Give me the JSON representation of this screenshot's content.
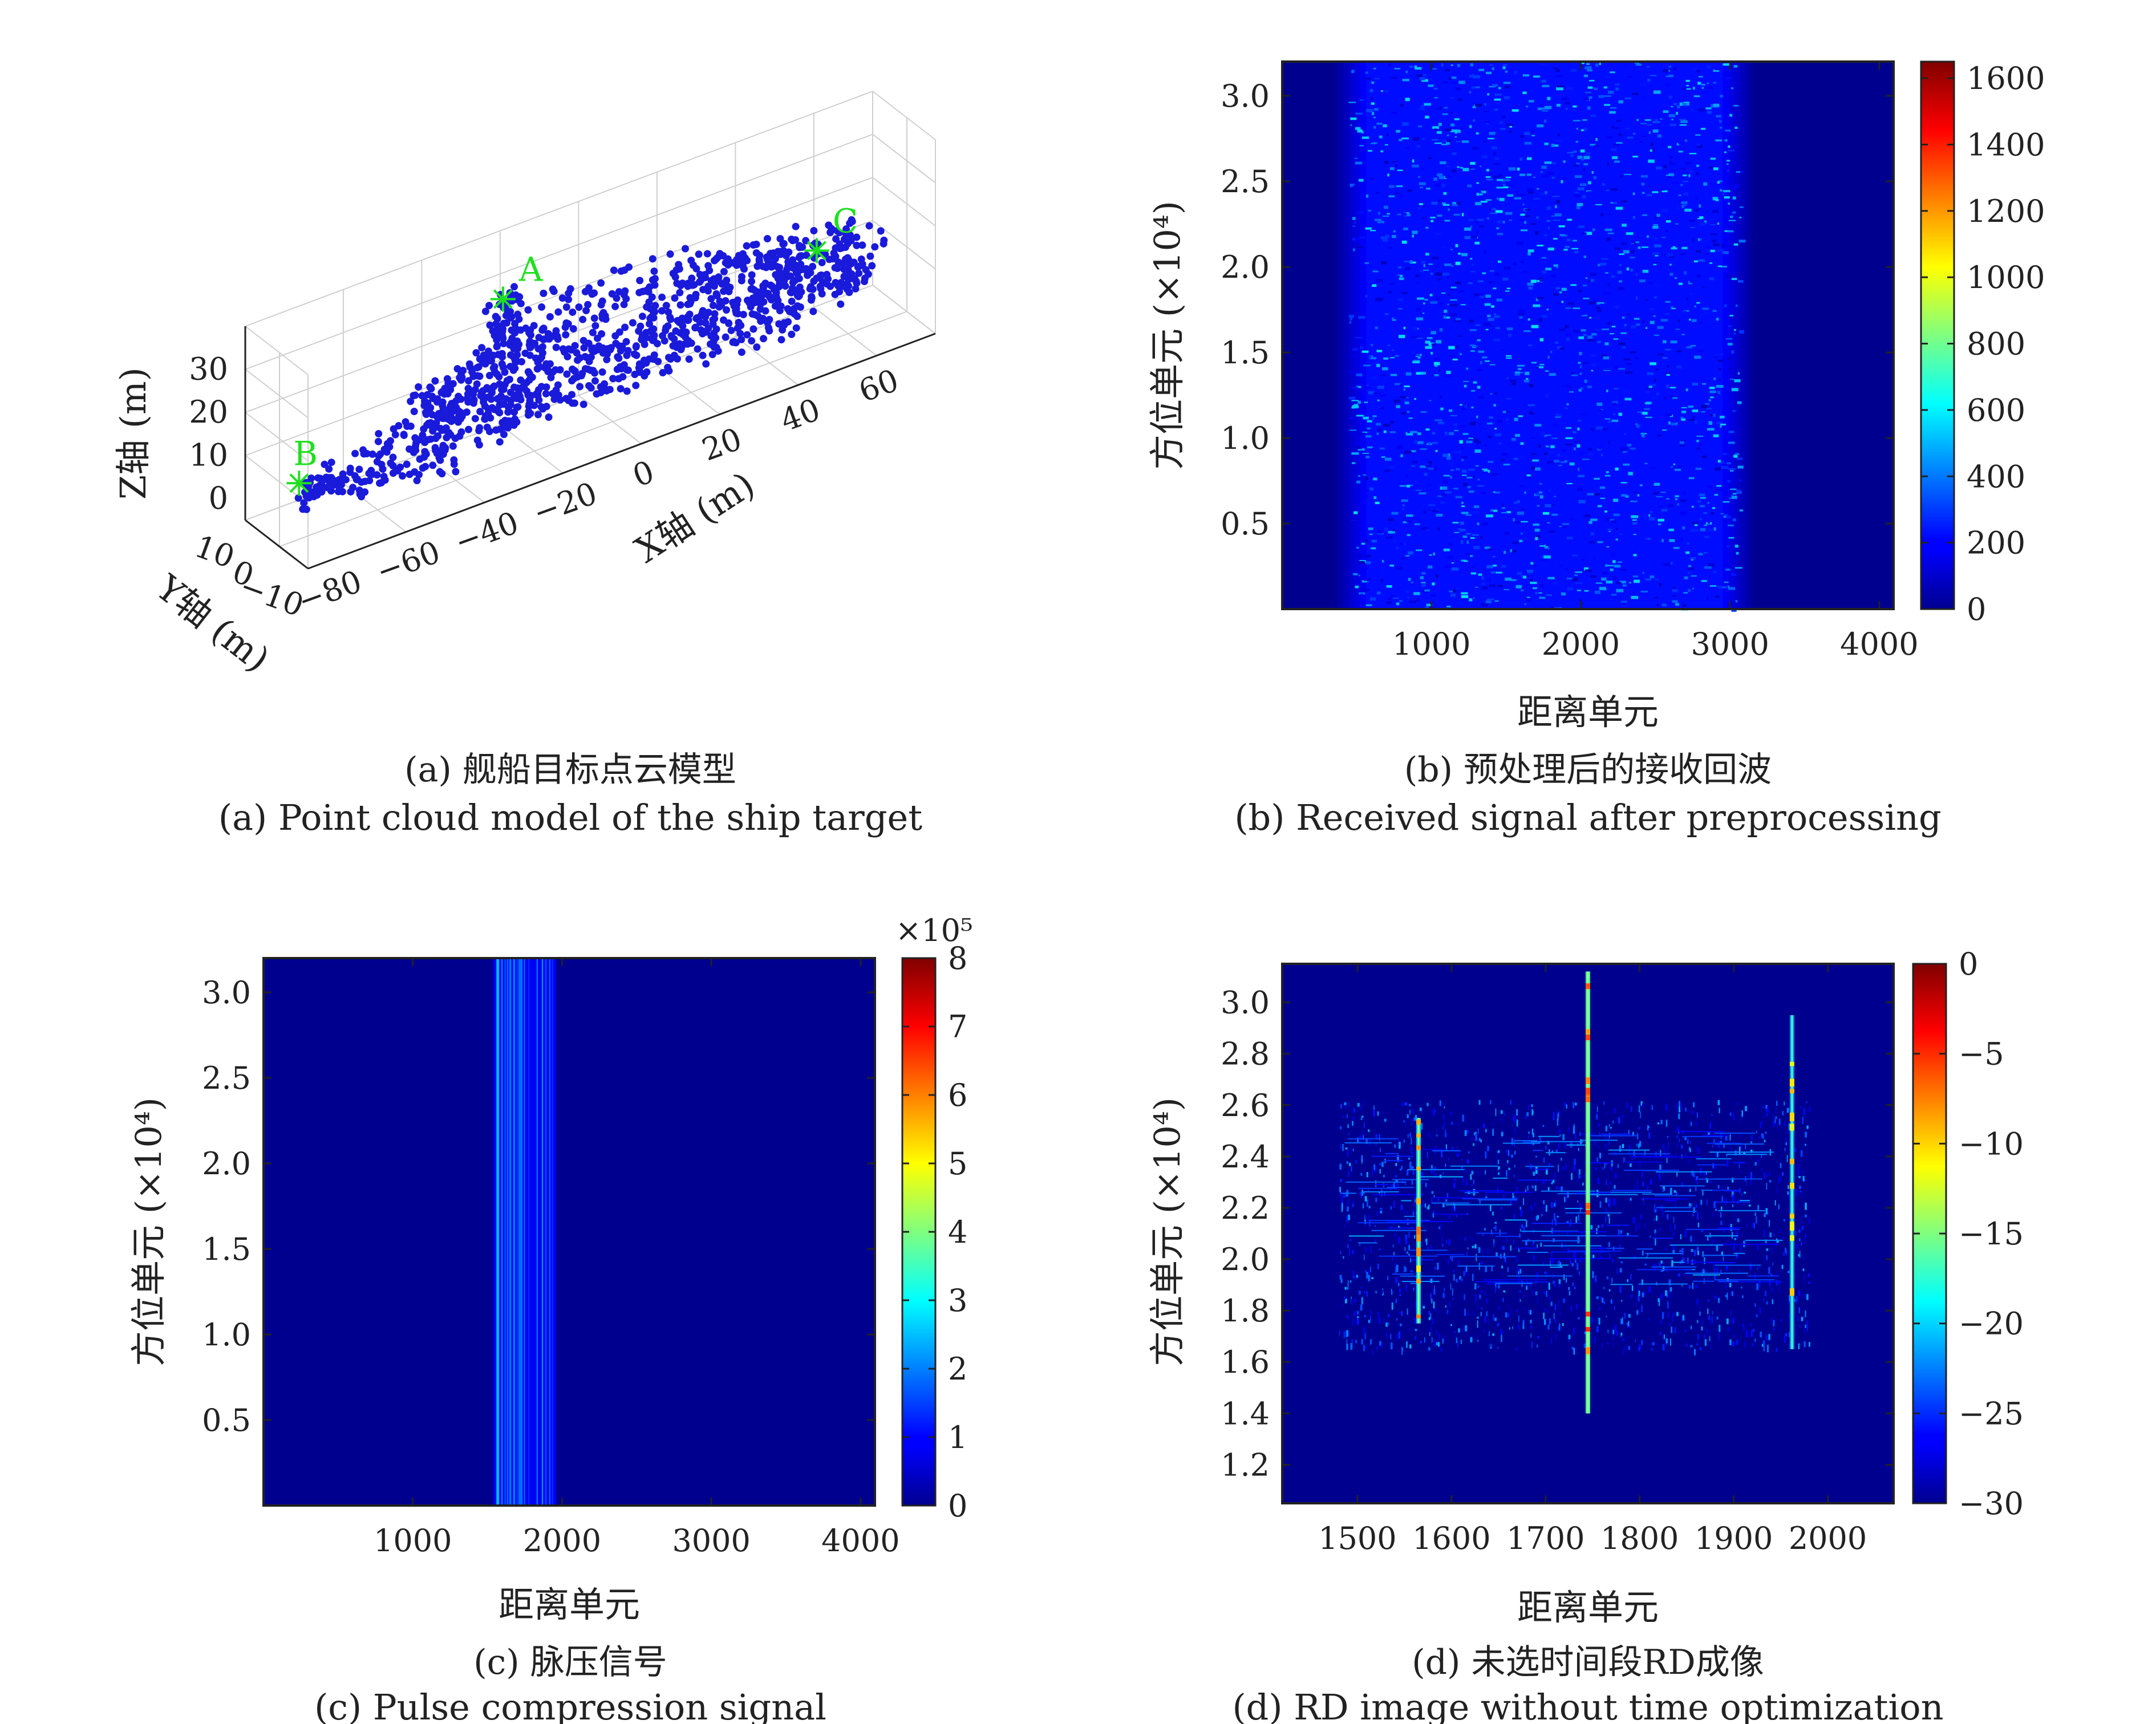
{
  "chart_data": [
    {
      "id": "a",
      "type": "scatter",
      "projection": "3d",
      "caption_zh": "(a) 舰船目标点云模型",
      "caption_en": "(a) Point cloud model of the ship target",
      "xlabel": "X轴 (m)",
      "ylabel": "Y轴 (m)",
      "zlabel": "Z轴 (m)",
      "x_ticks": [
        "-80",
        "-60",
        "-40",
        "-20",
        "0",
        "20",
        "40",
        "60"
      ],
      "y_ticks": [
        "10",
        "0",
        "-10"
      ],
      "z_ticks": [
        "0",
        "10",
        "20",
        "30"
      ],
      "xlim": [
        -85,
        75
      ],
      "ylim": [
        -10,
        12
      ],
      "zlim": [
        -5,
        40
      ],
      "grid": true,
      "point_color": "#1a1adb",
      "marker_color": "#1ee01e",
      "markers": [
        {
          "label": "A",
          "x": -28,
          "y": 0,
          "z": 33
        },
        {
          "label": "B",
          "x": -80,
          "y": 0,
          "z": 8
        },
        {
          "label": "C",
          "x": 52,
          "y": 0,
          "z": 17
        }
      ]
    },
    {
      "id": "b",
      "type": "heatmap",
      "caption_zh": "(b) 预处理后的接收回波",
      "caption_en": "(b) Received signal after preprocessing",
      "xlabel": "距离单元",
      "ylabel": "方位单元 (×10⁴)",
      "xlim": [
        0,
        4096
      ],
      "ylim": [
        0,
        3.2
      ],
      "x_ticks": [
        1000,
        2000,
        3000,
        4000
      ],
      "y_ticks": [
        0.5,
        1.0,
        1.5,
        2.0,
        2.5,
        3.0
      ],
      "y_tick_labels": [
        "0.5",
        "1.0",
        "1.5",
        "2.0",
        "2.5",
        "3.0"
      ],
      "colorbar": {
        "min": 0,
        "max": 1650,
        "ticks": [
          "0",
          "200",
          "400",
          "600",
          "800",
          "1000",
          "1200",
          "1400",
          "1600"
        ],
        "tick_values": [
          0,
          200,
          400,
          600,
          800,
          1000,
          1200,
          1400,
          1600
        ],
        "exponent": ""
      },
      "signal_band": {
        "x_start": 330,
        "x_end": 3180,
        "level": 300
      }
    },
    {
      "id": "c",
      "type": "heatmap",
      "caption_zh": "(c) 脉压信号",
      "caption_en": "(c) Pulse compression signal",
      "xlabel": "距离单元",
      "ylabel": "方位单元 (×10⁴)",
      "xlim": [
        0,
        4096
      ],
      "ylim": [
        0,
        3.2
      ],
      "x_ticks": [
        1000,
        2000,
        3000,
        4000
      ],
      "y_ticks": [
        0.5,
        1.0,
        1.5,
        2.0,
        2.5,
        3.0
      ],
      "y_tick_labels": [
        "0.5",
        "1.0",
        "1.5",
        "2.0",
        "2.5",
        "3.0"
      ],
      "colorbar": {
        "min": 0,
        "max": 8,
        "ticks": [
          "0",
          "1",
          "2",
          "3",
          "4",
          "5",
          "6",
          "7",
          "8"
        ],
        "tick_values": [
          0,
          1,
          2,
          3,
          4,
          5,
          6,
          7,
          8
        ],
        "exponent": "×10⁵"
      },
      "signal_band": {
        "x_start": 1540,
        "x_end": 1960,
        "level": 1.5
      }
    },
    {
      "id": "d",
      "type": "heatmap",
      "caption_zh": "(d) 未选时间段RD成像",
      "caption_en": "(d) RD image without time optimization",
      "xlabel": "距离单元",
      "ylabel": "方位单元 (×10⁴)",
      "xlim": [
        1420,
        2070
      ],
      "ylim": [
        1.05,
        3.15
      ],
      "x_ticks": [
        1500,
        1600,
        1700,
        1800,
        1900,
        2000
      ],
      "y_ticks": [
        1.2,
        1.4,
        1.6,
        1.8,
        2.0,
        2.2,
        2.4,
        2.6,
        2.8,
        3.0
      ],
      "y_tick_labels": [
        "1.2",
        "1.4",
        "1.6",
        "1.8",
        "2.0",
        "2.2",
        "2.4",
        "2.6",
        "2.8",
        "3.0"
      ],
      "colorbar": {
        "min": -30,
        "max": 0,
        "ticks": [
          "-30",
          "-25",
          "-20",
          "-15",
          "-10",
          "-5",
          "0"
        ],
        "tick_values": [
          -30,
          -25,
          -20,
          -15,
          -10,
          -5,
          0
        ],
        "exponent": ""
      },
      "strong_lines": [
        {
          "x": 1565,
          "y_start": 1.75,
          "y_end": 2.55,
          "level": -14
        },
        {
          "x": 1745,
          "y_start": 1.4,
          "y_end": 3.12,
          "level": -12
        },
        {
          "x": 1962,
          "y_start": 1.65,
          "y_end": 2.95,
          "level": -16
        }
      ],
      "target_region": {
        "x_start": 1480,
        "x_end": 1980,
        "y_bottom": 1.65,
        "y_top": 2.62
      }
    }
  ]
}
